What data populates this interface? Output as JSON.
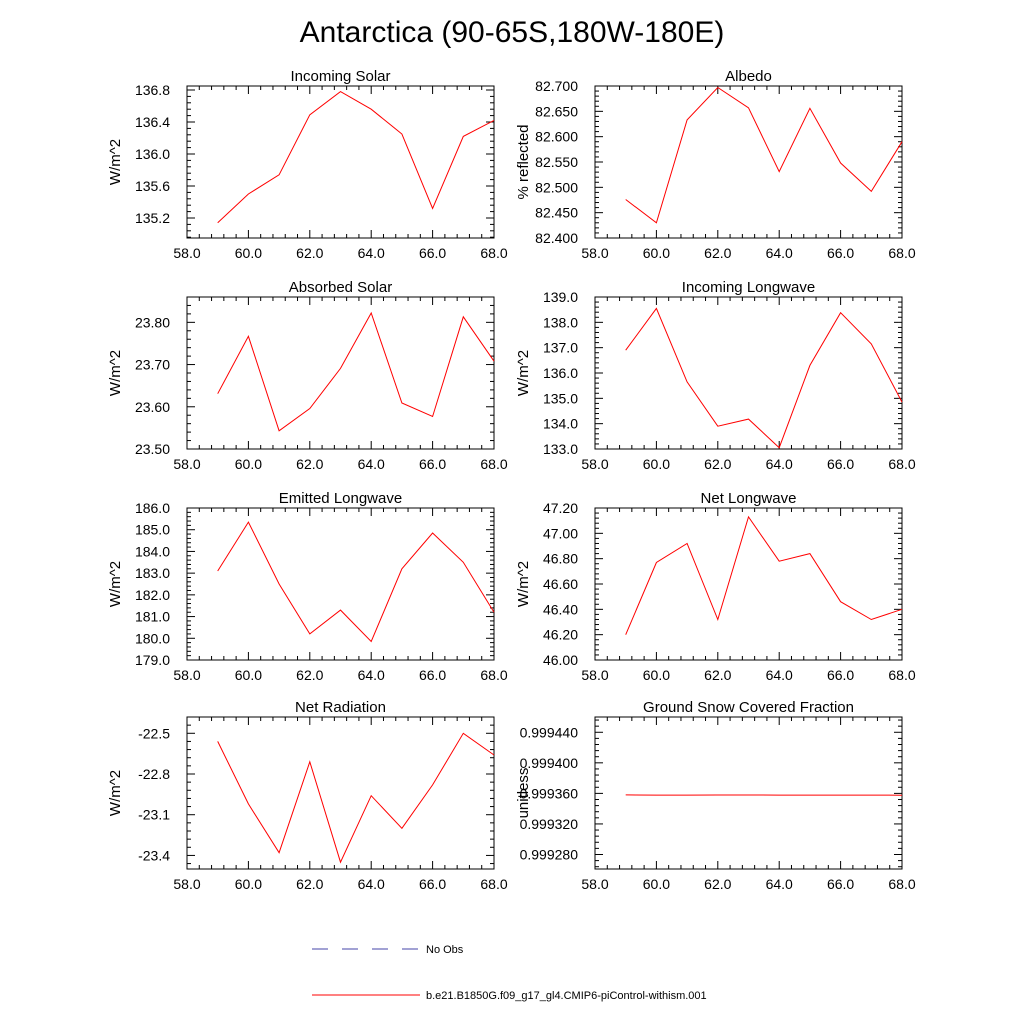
{
  "figure": {
    "title": "Antarctica (90-65S,180W-180E)"
  },
  "chart_data": [
    {
      "type": "line",
      "title": "Incoming Solar",
      "ylabel": "W/m^2",
      "xlabel": "",
      "x": [
        59,
        60,
        61,
        62,
        63,
        64,
        65,
        66,
        67,
        68
      ],
      "xlim": [
        58,
        68
      ],
      "xticks": [
        "58.0",
        "60.0",
        "62.0",
        "64.0",
        "66.0",
        "68.0"
      ],
      "ylim": [
        134.95,
        136.85
      ],
      "yticks": [
        {
          "v": 135.2,
          "label": "135.2"
        },
        {
          "v": 135.6,
          "label": "135.6"
        },
        {
          "v": 136.0,
          "label": "136.0"
        },
        {
          "v": 136.4,
          "label": "136.4"
        },
        {
          "v": 136.8,
          "label": "136.8"
        }
      ],
      "series": [
        {
          "name": "b.e21.B1850G.f09_g17_gl4.CMIP6-piControl-withism.001",
          "color": "#ff0000",
          "values": [
            135.14,
            135.5,
            135.74,
            136.49,
            136.78,
            136.56,
            136.25,
            135.32,
            136.22,
            136.42
          ]
        }
      ]
    },
    {
      "type": "line",
      "title": "Albedo",
      "ylabel": "% reflected",
      "xlabel": "",
      "x": [
        59,
        60,
        61,
        62,
        63,
        64,
        65,
        66,
        67,
        68
      ],
      "xlim": [
        58,
        68
      ],
      "xticks": [
        "58.0",
        "60.0",
        "62.0",
        "64.0",
        "66.0",
        "68.0"
      ],
      "ylim": [
        82.4,
        82.7
      ],
      "yticks": [
        {
          "v": 82.4,
          "label": "82.400"
        },
        {
          "v": 82.45,
          "label": "82.450"
        },
        {
          "v": 82.5,
          "label": "82.500"
        },
        {
          "v": 82.55,
          "label": "82.550"
        },
        {
          "v": 82.6,
          "label": "82.600"
        },
        {
          "v": 82.65,
          "label": "82.650"
        },
        {
          "v": 82.7,
          "label": "82.700"
        }
      ],
      "series": [
        {
          "name": "b.e21.B1850G.f09_g17_gl4.CMIP6-piControl-withism.001",
          "color": "#ff0000",
          "values": [
            82.476,
            82.43,
            82.633,
            82.697,
            82.657,
            82.531,
            82.656,
            82.548,
            82.492,
            82.59
          ]
        }
      ]
    },
    {
      "type": "line",
      "title": "Absorbed Solar",
      "ylabel": "W/m^2",
      "xlabel": "",
      "x": [
        59,
        60,
        61,
        62,
        63,
        64,
        65,
        66,
        67,
        68
      ],
      "xlim": [
        58,
        68
      ],
      "xticks": [
        "58.0",
        "60.0",
        "62.0",
        "64.0",
        "66.0",
        "68.0"
      ],
      "ylim": [
        23.5,
        23.86
      ],
      "yticks": [
        {
          "v": 23.5,
          "label": "23.50"
        },
        {
          "v": 23.6,
          "label": "23.60"
        },
        {
          "v": 23.7,
          "label": "23.70"
        },
        {
          "v": 23.8,
          "label": "23.80"
        }
      ],
      "series": [
        {
          "name": "b.e21.B1850G.f09_g17_gl4.CMIP6-piControl-withism.001",
          "color": "#ff0000",
          "values": [
            23.631,
            23.767,
            23.543,
            23.596,
            23.691,
            23.822,
            23.609,
            23.577,
            23.813,
            23.708
          ]
        }
      ]
    },
    {
      "type": "line",
      "title": "Incoming Longwave",
      "ylabel": "W/m^2",
      "xlabel": "",
      "x": [
        59,
        60,
        61,
        62,
        63,
        64,
        65,
        66,
        67,
        68
      ],
      "xlim": [
        58,
        68
      ],
      "xticks": [
        "58.0",
        "60.0",
        "62.0",
        "64.0",
        "66.0",
        "68.0"
      ],
      "ylim": [
        133.0,
        139.0
      ],
      "yticks": [
        {
          "v": 133.0,
          "label": "133.0"
        },
        {
          "v": 134.0,
          "label": "134.0"
        },
        {
          "v": 135.0,
          "label": "135.0"
        },
        {
          "v": 136.0,
          "label": "136.0"
        },
        {
          "v": 137.0,
          "label": "137.0"
        },
        {
          "v": 138.0,
          "label": "138.0"
        },
        {
          "v": 139.0,
          "label": "139.0"
        }
      ],
      "series": [
        {
          "name": "b.e21.B1850G.f09_g17_gl4.CMIP6-piControl-withism.001",
          "color": "#ff0000",
          "values": [
            136.9,
            138.55,
            135.65,
            133.9,
            134.18,
            133.05,
            136.3,
            138.38,
            137.15,
            134.85
          ]
        }
      ]
    },
    {
      "type": "line",
      "title": "Emitted Longwave",
      "ylabel": "W/m^2",
      "xlabel": "",
      "x": [
        59,
        60,
        61,
        62,
        63,
        64,
        65,
        66,
        67,
        68
      ],
      "xlim": [
        58,
        68
      ],
      "xticks": [
        "58.0",
        "60.0",
        "62.0",
        "64.0",
        "66.0",
        "68.0"
      ],
      "ylim": [
        179.0,
        186.0
      ],
      "yticks": [
        {
          "v": 179.0,
          "label": "179.0"
        },
        {
          "v": 180.0,
          "label": "180.0"
        },
        {
          "v": 181.0,
          "label": "181.0"
        },
        {
          "v": 182.0,
          "label": "182.0"
        },
        {
          "v": 183.0,
          "label": "183.0"
        },
        {
          "v": 184.0,
          "label": "184.0"
        },
        {
          "v": 185.0,
          "label": "185.0"
        },
        {
          "v": 186.0,
          "label": "186.0"
        }
      ],
      "series": [
        {
          "name": "b.e21.B1850G.f09_g17_gl4.CMIP6-piControl-withism.001",
          "color": "#ff0000",
          "values": [
            183.1,
            185.35,
            182.5,
            180.2,
            181.3,
            179.85,
            183.2,
            184.85,
            183.5,
            181.2
          ]
        }
      ]
    },
    {
      "type": "line",
      "title": "Net Longwave",
      "ylabel": "W/m^2",
      "xlabel": "",
      "x": [
        59,
        60,
        61,
        62,
        63,
        64,
        65,
        66,
        67,
        68
      ],
      "xlim": [
        58,
        68
      ],
      "xticks": [
        "58.0",
        "60.0",
        "62.0",
        "64.0",
        "66.0",
        "68.0"
      ],
      "ylim": [
        46.0,
        47.2
      ],
      "yticks": [
        {
          "v": 46.0,
          "label": "46.00"
        },
        {
          "v": 46.2,
          "label": "46.20"
        },
        {
          "v": 46.4,
          "label": "46.40"
        },
        {
          "v": 46.6,
          "label": "46.60"
        },
        {
          "v": 46.8,
          "label": "46.80"
        },
        {
          "v": 47.0,
          "label": "47.00"
        },
        {
          "v": 47.2,
          "label": "47.20"
        }
      ],
      "series": [
        {
          "name": "b.e21.B1850G.f09_g17_gl4.CMIP6-piControl-withism.001",
          "color": "#ff0000",
          "values": [
            46.2,
            46.77,
            46.92,
            46.32,
            47.13,
            46.78,
            46.84,
            46.46,
            46.32,
            46.4
          ]
        }
      ]
    },
    {
      "type": "line",
      "title": "Net Radiation",
      "ylabel": "W/m^2",
      "xlabel": "",
      "x": [
        59,
        60,
        61,
        62,
        63,
        64,
        65,
        66,
        67,
        68
      ],
      "xlim": [
        58,
        68
      ],
      "xticks": [
        "58.0",
        "60.0",
        "62.0",
        "64.0",
        "66.0",
        "68.0"
      ],
      "ylim": [
        -23.5,
        -22.38
      ],
      "yticks": [
        {
          "v": -23.4,
          "label": "-23.4"
        },
        {
          "v": -23.1,
          "label": "-23.1"
        },
        {
          "v": -22.8,
          "label": "-22.8"
        },
        {
          "v": -22.5,
          "label": "-22.5"
        }
      ],
      "series": [
        {
          "name": "b.e21.B1850G.f09_g17_gl4.CMIP6-piControl-withism.001",
          "color": "#ff0000",
          "values": [
            -22.56,
            -23.02,
            -23.38,
            -22.71,
            -23.45,
            -22.96,
            -23.2,
            -22.88,
            -22.5,
            -22.66
          ]
        }
      ]
    },
    {
      "type": "line",
      "title": "Ground Snow Covered Fraction",
      "ylabel": "unitless",
      "xlabel": "",
      "x": [
        59,
        60,
        61,
        62,
        63,
        64,
        65,
        66,
        67,
        68
      ],
      "xlim": [
        58,
        68
      ],
      "xticks": [
        "58.0",
        "60.0",
        "62.0",
        "64.0",
        "66.0",
        "68.0"
      ],
      "ylim": [
        0.999261,
        0.99946
      ],
      "yticks": [
        {
          "v": 0.99928,
          "label": "0.999280"
        },
        {
          "v": 0.99932,
          "label": "0.999320"
        },
        {
          "v": 0.99936,
          "label": "0.999360"
        },
        {
          "v": 0.9994,
          "label": "0.999400"
        },
        {
          "v": 0.99944,
          "label": "0.999440"
        }
      ],
      "series": [
        {
          "name": "b.e21.B1850G.f09_g17_gl4.CMIP6-piControl-withism.001",
          "color": "#ff0000",
          "values": [
            0.999358,
            0.9993578,
            0.9993578,
            0.9993579,
            0.9993579,
            0.9993578,
            0.9993578,
            0.9993578,
            0.9993577,
            0.9993576
          ]
        }
      ]
    }
  ],
  "legend": {
    "entries": [
      {
        "label": "No Obs",
        "color": "#4444aa",
        "style": "dashed"
      },
      {
        "label": "b.e21.B1850G.f09_g17_gl4.CMIP6-piControl-withism.001",
        "color": "#ff0000",
        "style": "solid"
      }
    ]
  }
}
